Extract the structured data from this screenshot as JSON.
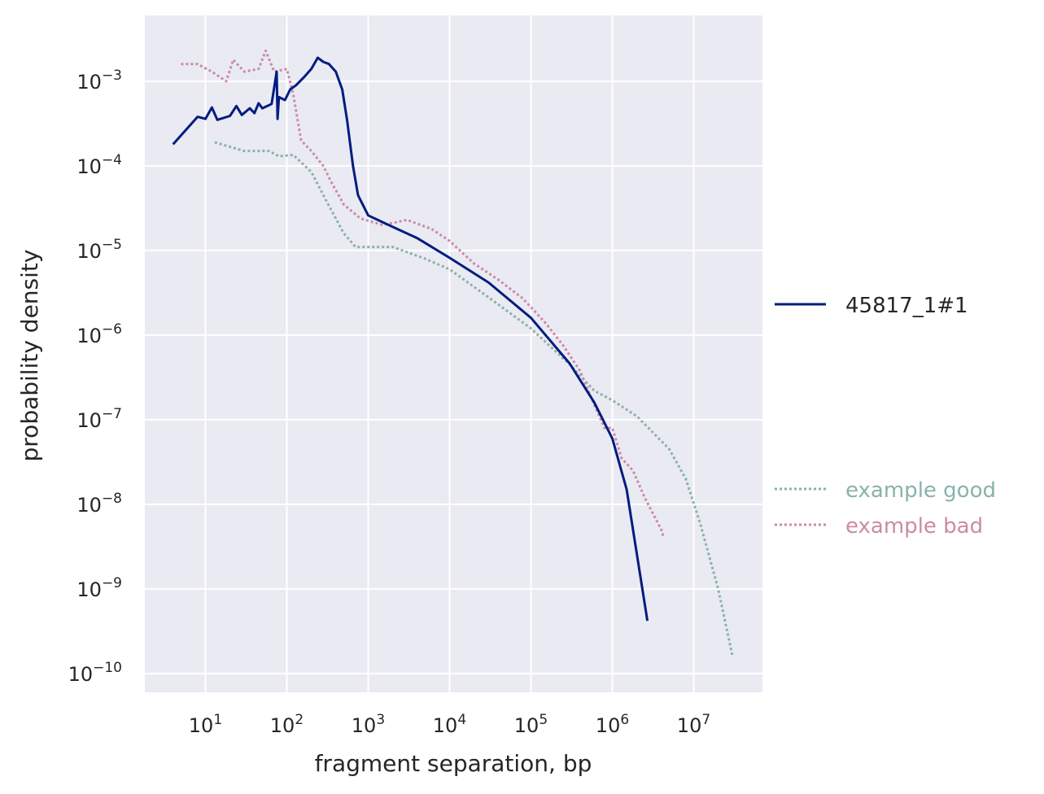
{
  "chart_data": {
    "type": "line",
    "title": "",
    "xlabel": "fragment separation, bp",
    "ylabel": "probability density",
    "xscale": "log",
    "yscale": "log",
    "xlim": [
      1.8,
      70000000
    ],
    "ylim": [
      6e-11,
      0.006
    ],
    "grid": true,
    "x_ticks": [
      {
        "base": "10",
        "exp": "1",
        "value": 10
      },
      {
        "base": "10",
        "exp": "2",
        "value": 100
      },
      {
        "base": "10",
        "exp": "3",
        "value": 1000
      },
      {
        "base": "10",
        "exp": "4",
        "value": 10000
      },
      {
        "base": "10",
        "exp": "5",
        "value": 100000
      },
      {
        "base": "10",
        "exp": "6",
        "value": 1000000
      },
      {
        "base": "10",
        "exp": "7",
        "value": 10000000
      }
    ],
    "y_ticks": [
      {
        "base": "10",
        "exp": "−3",
        "value": 0.001
      },
      {
        "base": "10",
        "exp": "−4",
        "value": 0.0001
      },
      {
        "base": "10",
        "exp": "−5",
        "value": 1e-05
      },
      {
        "base": "10",
        "exp": "−6",
        "value": 1e-06
      },
      {
        "base": "10",
        "exp": "−7",
        "value": 1e-07
      },
      {
        "base": "10",
        "exp": "−8",
        "value": 1e-08
      },
      {
        "base": "10",
        "exp": "−9",
        "value": 1e-09
      },
      {
        "base": "10",
        "exp": "−10",
        "value": 1e-10
      }
    ],
    "legend_top": {
      "placement": "right",
      "entries": [
        "45817_1#1"
      ]
    },
    "legend_bottom": {
      "placement": "right",
      "entries": [
        "example good",
        "example bad"
      ]
    },
    "series": [
      {
        "name": "45817_1#1",
        "color": "#001c7f",
        "style": "solid",
        "points": [
          [
            4,
            0.00018
          ],
          [
            8,
            0.00038
          ],
          [
            10,
            0.00036
          ],
          [
            12,
            0.00049
          ],
          [
            14,
            0.00035
          ],
          [
            20,
            0.00039
          ],
          [
            24,
            0.00051
          ],
          [
            28,
            0.0004
          ],
          [
            35,
            0.00048
          ],
          [
            40,
            0.00042
          ],
          [
            45,
            0.00055
          ],
          [
            50,
            0.00048
          ],
          [
            65,
            0.00054
          ],
          [
            75,
            0.0013
          ],
          [
            77,
            0.00036
          ],
          [
            80,
            0.00065
          ],
          [
            95,
            0.0006
          ],
          [
            110,
            0.0008
          ],
          [
            130,
            0.0009
          ],
          [
            160,
            0.0011
          ],
          [
            200,
            0.0014
          ],
          [
            240,
            0.0019
          ],
          [
            280,
            0.0017
          ],
          [
            330,
            0.0016
          ],
          [
            400,
            0.0013
          ],
          [
            480,
            0.0008
          ],
          [
            550,
            0.00035
          ],
          [
            650,
            0.0001
          ],
          [
            750,
            4.5e-05
          ],
          [
            1000,
            2.6e-05
          ],
          [
            2000,
            1.9e-05
          ],
          [
            4000,
            1.4e-05
          ],
          [
            10000,
            8.2e-06
          ],
          [
            30000,
            4.2e-06
          ],
          [
            100000,
            1.6e-06
          ],
          [
            300000,
            4.6e-07
          ],
          [
            600000,
            1.6e-07
          ],
          [
            1000000,
            6e-08
          ],
          [
            1500000,
            1.5e-08
          ],
          [
            2700000,
            4.2e-10
          ]
        ]
      },
      {
        "name": "example good",
        "color": "#8ab2aa",
        "style": "dotted",
        "points": [
          [
            13,
            0.00019
          ],
          [
            30,
            0.00015
          ],
          [
            60,
            0.00015
          ],
          [
            80,
            0.00013
          ],
          [
            120,
            0.000135
          ],
          [
            200,
            8.5e-05
          ],
          [
            300,
            4e-05
          ],
          [
            500,
            1.6e-05
          ],
          [
            700,
            1.1e-05
          ],
          [
            2000,
            1.1e-05
          ],
          [
            5000,
            8e-06
          ],
          [
            10000,
            6e-06
          ],
          [
            30000,
            2.8e-06
          ],
          [
            100000,
            1.2e-06
          ],
          [
            300000,
            4.5e-07
          ],
          [
            600000,
            2.2e-07
          ],
          [
            1000000,
            1.7e-07
          ],
          [
            2000000,
            1.1e-07
          ],
          [
            5000000,
            4.5e-08
          ],
          [
            8000000,
            2e-08
          ],
          [
            12000000,
            6e-09
          ],
          [
            20000000,
            1e-09
          ],
          [
            30000000,
            1.6e-10
          ]
        ]
      },
      {
        "name": "example bad",
        "color": "#cc8aa8",
        "style": "dotted",
        "points": [
          [
            5,
            0.0016
          ],
          [
            8,
            0.0016
          ],
          [
            12,
            0.0013
          ],
          [
            18,
            0.001
          ],
          [
            22,
            0.0018
          ],
          [
            30,
            0.0013
          ],
          [
            45,
            0.0014
          ],
          [
            55,
            0.0023
          ],
          [
            70,
            0.0013
          ],
          [
            100,
            0.0014
          ],
          [
            120,
            0.0007
          ],
          [
            150,
            0.0002
          ],
          [
            200,
            0.00015
          ],
          [
            280,
            0.0001
          ],
          [
            350,
            6.5e-05
          ],
          [
            500,
            3.5e-05
          ],
          [
            800,
            2.4e-05
          ],
          [
            1500,
            2e-05
          ],
          [
            3000,
            2.3e-05
          ],
          [
            6000,
            1.8e-05
          ],
          [
            10000,
            1.3e-05
          ],
          [
            20000,
            7e-06
          ],
          [
            40000,
            4.5e-06
          ],
          [
            80000,
            2.7e-06
          ],
          [
            150000,
            1.4e-06
          ],
          [
            250000,
            7.5e-07
          ],
          [
            400000,
            3.8e-07
          ],
          [
            600000,
            1.5e-07
          ],
          [
            800000,
            8e-08
          ],
          [
            1000000,
            8e-08
          ],
          [
            1300000,
            3.5e-08
          ],
          [
            1800000,
            2.5e-08
          ],
          [
            2500000,
            1.2e-08
          ],
          [
            4000000,
            5e-09
          ],
          [
            4300000,
            4e-09
          ]
        ]
      }
    ]
  }
}
